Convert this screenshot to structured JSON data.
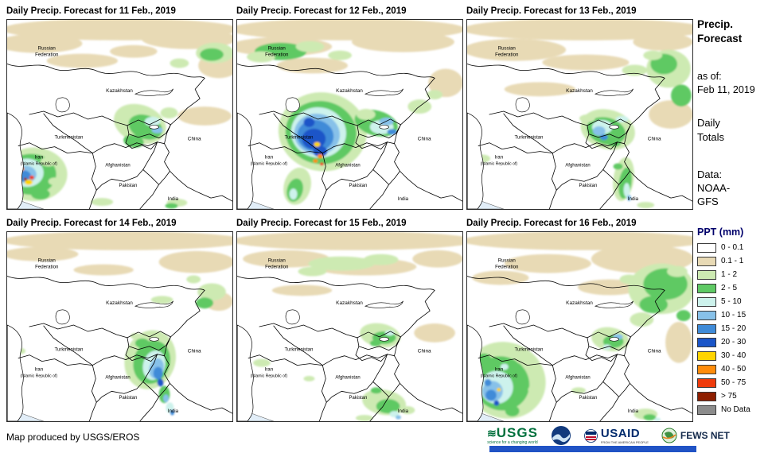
{
  "panels": [
    {
      "title": "Daily Precip. Forecast for 11 Feb., 2019"
    },
    {
      "title": "Daily Precip. Forecast for 12 Feb., 2019"
    },
    {
      "title": "Daily Precip. Forecast for 13 Feb., 2019"
    },
    {
      "title": "Daily Precip. Forecast for 14 Feb., 2019"
    },
    {
      "title": "Daily Precip. Forecast for 15 Feb., 2019"
    },
    {
      "title": "Daily Precip. Forecast for 16 Feb., 2019"
    }
  ],
  "map_labels": {
    "russia1": "Russian",
    "russia2": "Federation",
    "kazakhstan": "Kazakhstan",
    "turkmenistan": "Turkmenistan",
    "iran1": "Iran",
    "iran2": "(Islamic Republic of)",
    "afghanistan": "Afghanistan",
    "pakistan": "Pakistan",
    "india": "India",
    "china": "China"
  },
  "sidebar": {
    "title": "Precip.\nForecast",
    "as_of": "as of:\nFeb 11, 2019",
    "totals": "Daily\nTotals",
    "source": "Data:\nNOAA-\nGFS",
    "legend_title": "PPT (mm)"
  },
  "legend": {
    "entries": [
      {
        "label": "0 - 0.1",
        "color": "#ffffff"
      },
      {
        "label": "0.1 - 1",
        "color": "#e8dab5"
      },
      {
        "label": "1 - 2",
        "color": "#cdeab2"
      },
      {
        "label": "2 - 5",
        "color": "#5ec964"
      },
      {
        "label": "5 - 10",
        "color": "#cdf2ec"
      },
      {
        "label": "10 - 15",
        "color": "#87c1e9"
      },
      {
        "label": "15 - 20",
        "color": "#3f8bd8"
      },
      {
        "label": "20 - 30",
        "color": "#1a55c8"
      },
      {
        "label": "30 - 40",
        "color": "#ffd400"
      },
      {
        "label": "40 - 50",
        "color": "#ff8c0b"
      },
      {
        "label": "50 - 75",
        "color": "#ef3b0c"
      },
      {
        "label": "> 75",
        "color": "#8e1f00"
      },
      {
        "label": "No Data",
        "color": "#8c8c8c"
      }
    ]
  },
  "footer": {
    "credit": "Map produced by USGS/EROS"
  },
  "logos": {
    "usgs_text": "USGS",
    "usgs_tagline": "science for a changing world",
    "usaid_text": "USAID",
    "usaid_tagline": "FROM THE AMERICAN PEOPLE",
    "fewsnet_text": "FEWS NET"
  }
}
